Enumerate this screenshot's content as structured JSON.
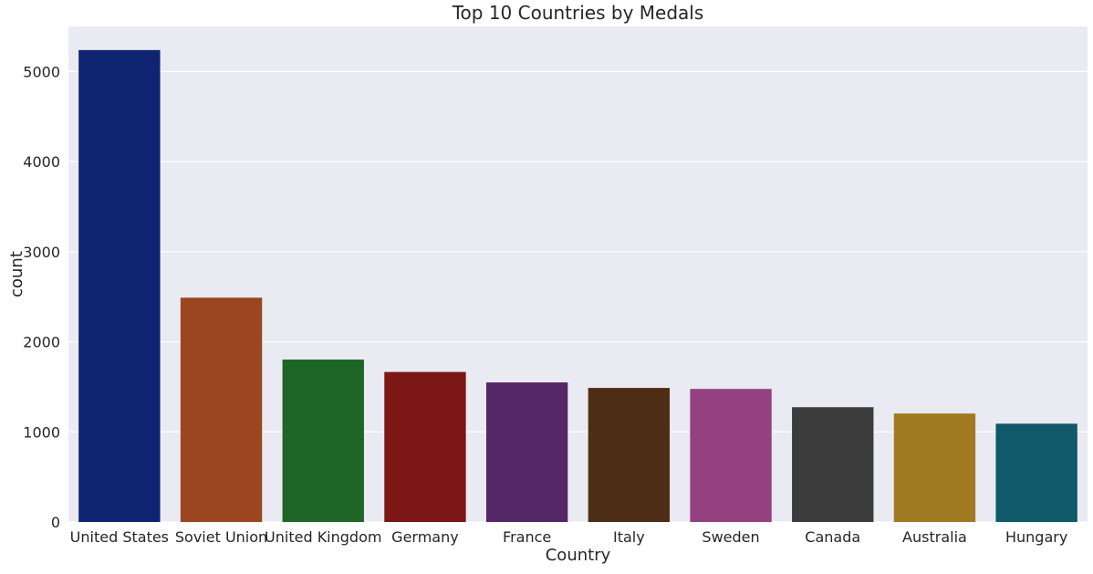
{
  "chart_data": {
    "type": "bar",
    "title": "Top 10 Countries by Medals",
    "xlabel": "Country",
    "ylabel": "count",
    "categories": [
      "United States",
      "Soviet Union",
      "United Kingdom",
      "Germany",
      "France",
      "Italy",
      "Sweden",
      "Canada",
      "Australia",
      "Hungary"
    ],
    "values": [
      5238,
      2490,
      1803,
      1665,
      1549,
      1488,
      1477,
      1274,
      1204,
      1091
    ],
    "colors": [
      "#0e2470",
      "#9b4620",
      "#1e6627",
      "#7b1714",
      "#542767",
      "#4e2d16",
      "#934181",
      "#3c3c3c",
      "#a07a21",
      "#10596a"
    ],
    "ylim": [
      0,
      5500
    ],
    "yticks": [
      0,
      1000,
      2000,
      3000,
      4000,
      5000
    ],
    "grid": true,
    "background_color": "#eaeaf2",
    "grid_color": "#ffffff"
  }
}
